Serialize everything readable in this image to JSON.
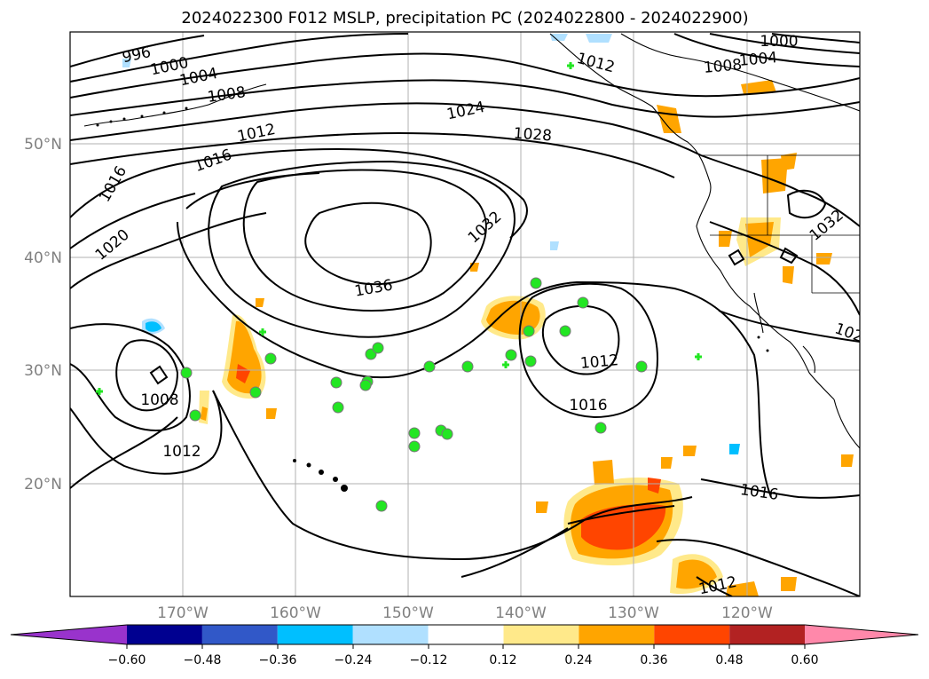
{
  "title": "2024022300 F012 MSLP, precipitation PC (2024022800 - 2024022900)",
  "lat_labels": [
    "50°N",
    "40°N",
    "30°N",
    "20°N"
  ],
  "lon_labels": [
    "170°W",
    "160°W",
    "150°W",
    "140°W",
    "130°W",
    "120°W"
  ],
  "contour_labels": [
    "996",
    "1000",
    "1004",
    "1008",
    "1012",
    "1016",
    "1020",
    "1024",
    "1028",
    "1032",
    "1036",
    "1008",
    "1012",
    "1012",
    "1016",
    "1016",
    "1012",
    "1000",
    "1004",
    "1008",
    "1012",
    "1032",
    "102"
  ],
  "colorbar": {
    "ticks": [
      "−0.60",
      "−0.48",
      "−0.36",
      "−0.24",
      "−0.12",
      "0.12",
      "0.24",
      "0.36",
      "0.48",
      "0.60"
    ],
    "colors": [
      "#9933cc",
      "#000090",
      "#3158c8",
      "#00bfff",
      "#b0e0ff",
      "#ffffff",
      "#ffe98a",
      "#ffa500",
      "#ff4500",
      "#b22222",
      "#ff88aa"
    ]
  },
  "colors": {
    "contour": "#000000",
    "grid": "#b0b0b0",
    "marker": "#22e622",
    "marker_edge": "#777777"
  }
}
